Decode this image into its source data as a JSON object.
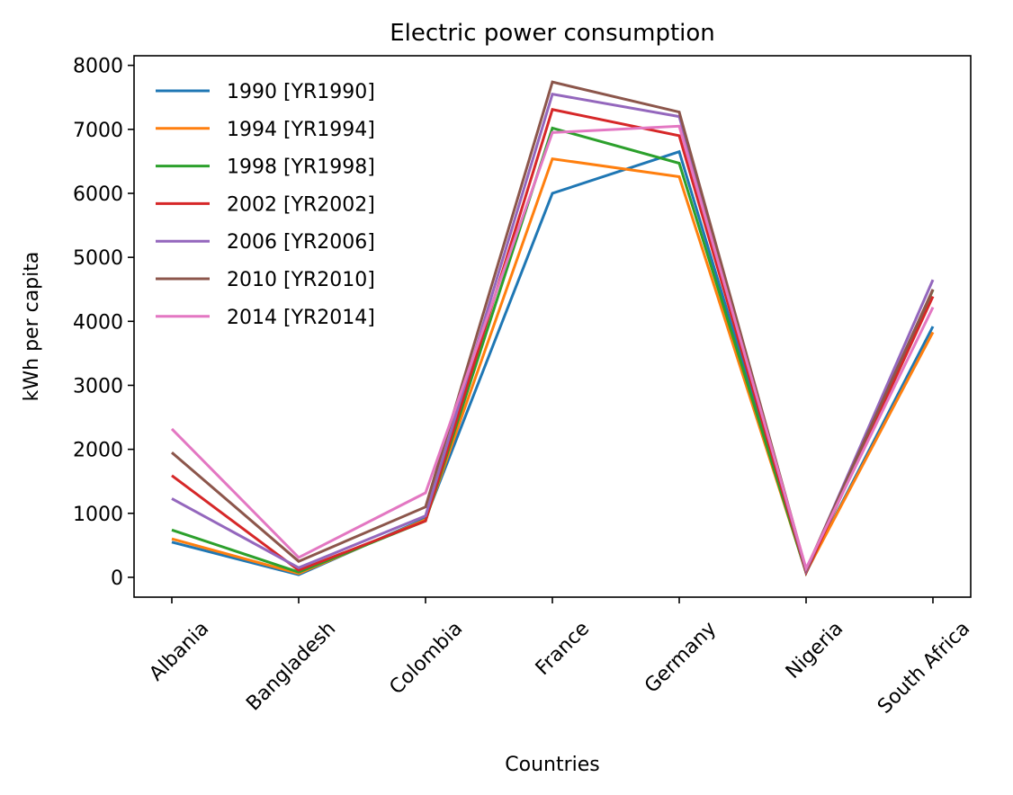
{
  "chart_data": {
    "type": "line",
    "title": "Electric power consumption",
    "xlabel": "Countries",
    "ylabel": "kWh per capita",
    "categories": [
      "Albania",
      "Bangladesh",
      "Colombia",
      "France",
      "Germany",
      "Nigeria",
      "South Africa"
    ],
    "yticks": [
      0,
      1000,
      2000,
      3000,
      4000,
      5000,
      6000,
      7000,
      8000
    ],
    "ylim": [
      -310,
      8150
    ],
    "legend_position": "top-left",
    "grid": false,
    "series": [
      {
        "name": "1990 [YR1990]",
        "color": "#1f77b4",
        "values": [
          550,
          40,
          920,
          6000,
          6650,
          75,
          3920
        ]
      },
      {
        "name": "1994 [YR1994]",
        "color": "#ff7f0e",
        "values": [
          600,
          60,
          900,
          6540,
          6260,
          80,
          3830
        ]
      },
      {
        "name": "1998 [YR1998]",
        "color": "#2ca02c",
        "values": [
          740,
          80,
          880,
          7020,
          6470,
          70,
          4490
        ]
      },
      {
        "name": "2002 [YR2002]",
        "color": "#d62728",
        "values": [
          1590,
          110,
          880,
          7310,
          6900,
          75,
          4390
        ]
      },
      {
        "name": "2006 [YR2006]",
        "color": "#9467bd",
        "values": [
          1230,
          150,
          960,
          7550,
          7200,
          100,
          4650
        ]
      },
      {
        "name": "2010 [YR2010]",
        "color": "#8c564b",
        "values": [
          1950,
          250,
          1100,
          7740,
          7270,
          120,
          4500
        ]
      },
      {
        "name": "2014 [YR2014]",
        "color": "#e377c2",
        "values": [
          2320,
          310,
          1320,
          6950,
          7050,
          140,
          4220
        ]
      }
    ]
  }
}
